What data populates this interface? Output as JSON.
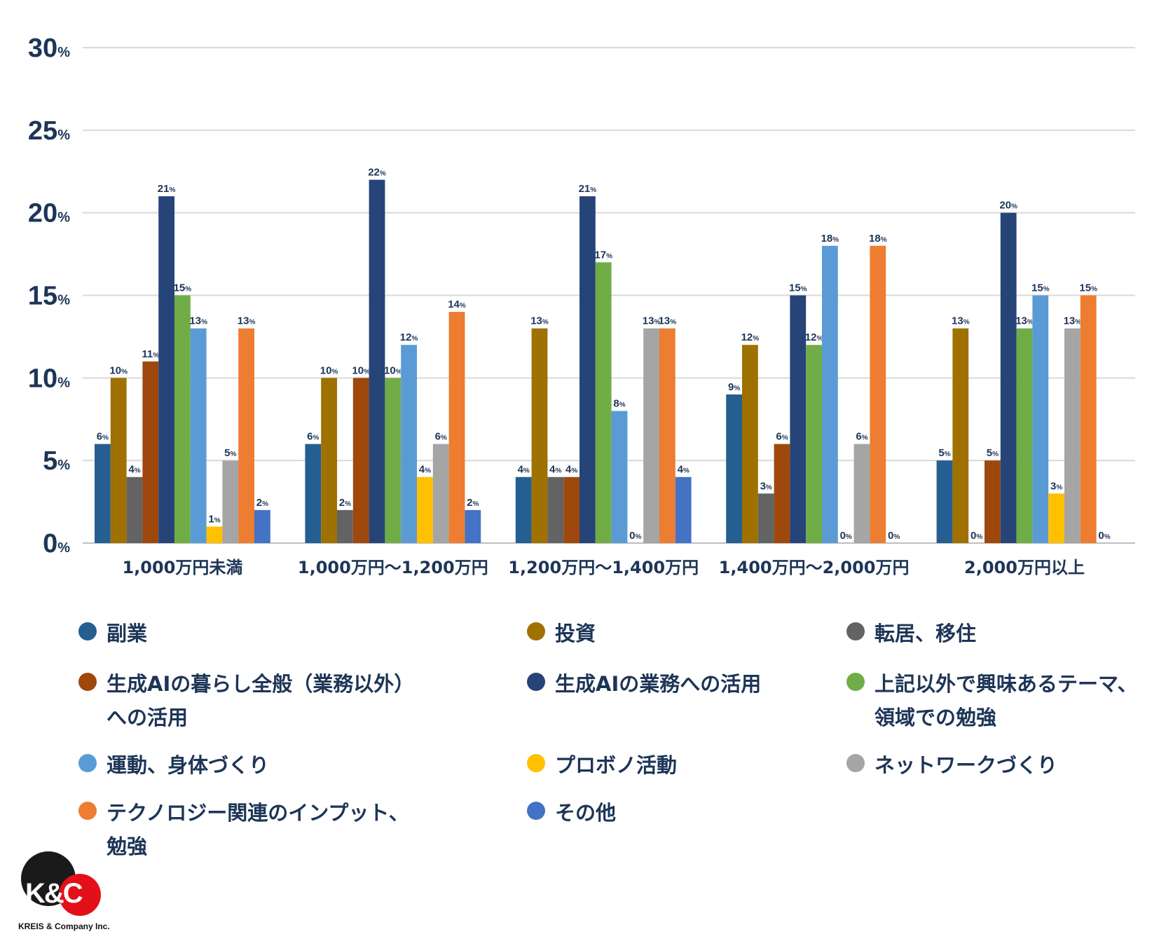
{
  "chart_data": {
    "type": "bar",
    "title": "",
    "xlabel": "",
    "ylabel": "",
    "ylim": [
      0,
      30
    ],
    "yticks": [
      0,
      5,
      10,
      15,
      20,
      25,
      30
    ],
    "ytick_suffix": "%",
    "value_suffix": "%",
    "grid": true,
    "legend_position": "bottom",
    "categories": [
      "1,000万円未満",
      "1,000万円〜1,200万円",
      "1,200万円〜1,400万円",
      "1,400万円〜2,000万円",
      "2,000万円以上"
    ],
    "series": [
      {
        "name": "副業",
        "color": "#255e91",
        "values": [
          6,
          6,
          4,
          9,
          5
        ]
      },
      {
        "name": "投資",
        "color": "#9e7100",
        "values": [
          10,
          10,
          13,
          12,
          13
        ]
      },
      {
        "name": "転居、移住",
        "color": "#636363",
        "values": [
          4,
          2,
          4,
          3,
          0
        ]
      },
      {
        "name": "生成AIの暮らし全般（業務以外）への活用",
        "color": "#9e480e",
        "values": [
          11,
          10,
          4,
          6,
          5
        ]
      },
      {
        "name": "生成AIの業務への活用",
        "color": "#264478",
        "values": [
          21,
          22,
          21,
          15,
          20
        ]
      },
      {
        "name": "上記以外で興味あるテーマ、領域での勉強",
        "color": "#70ad47",
        "values": [
          15,
          10,
          17,
          12,
          13
        ]
      },
      {
        "name": "運動、身体づくり",
        "color": "#5b9bd5",
        "values": [
          13,
          12,
          8,
          18,
          15
        ]
      },
      {
        "name": "プロボノ活動",
        "color": "#ffc000",
        "values": [
          1,
          4,
          0,
          0,
          3
        ]
      },
      {
        "name": "ネットワークづくり",
        "color": "#a5a5a5",
        "values": [
          5,
          6,
          13,
          6,
          13
        ]
      },
      {
        "name": "テクノロジー関連のインプット、勉強",
        "color": "#ed7d31",
        "values": [
          13,
          14,
          13,
          18,
          15
        ]
      },
      {
        "name": "その他",
        "color": "#4472c4",
        "values": [
          2,
          2,
          4,
          0,
          0
        ]
      }
    ]
  },
  "logo": {
    "mark": "K&C",
    "company": "KREIS & Company Inc."
  }
}
